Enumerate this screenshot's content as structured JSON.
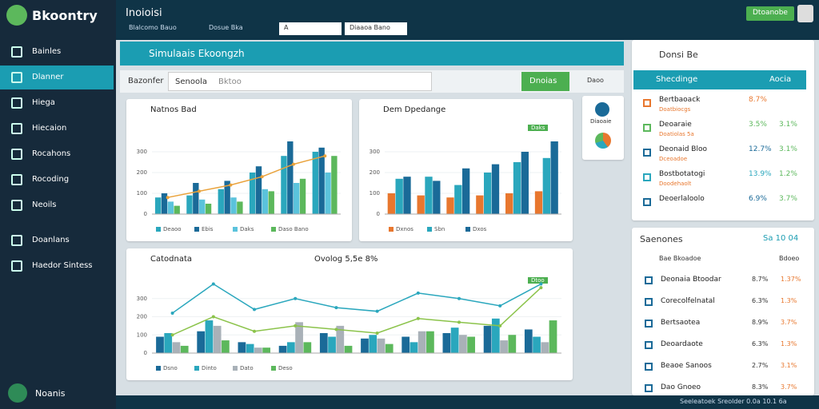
{
  "app": {
    "logo": "Bkoontry",
    "user": "Noanis",
    "status": "Seeleatoek Sreolder 0.0a 10.1 6a"
  },
  "sidebar": [
    "Bainles",
    "Dlanner",
    "Hiega",
    "Hiecaion",
    "Rocahons",
    "Rocoding",
    "Neoils",
    "Doanlans",
    "Haedor Sintess"
  ],
  "topbar": {
    "title": "Inoioisi",
    "tabs": [
      "Blalcomo Bauo",
      "Dosue Bka",
      "A",
      "Diaaoa Bano"
    ],
    "button": "Dtoanobe"
  },
  "main": {
    "title": "Simulaais Ekoongzh",
    "filter": "Bazonfer",
    "select": "Senoola",
    "search": "Bktoo",
    "button": "Dnoias",
    "option": "Daoo",
    "card": "Diaoaie"
  },
  "charts": [
    {
      "type": "bar",
      "title": "Natnos Bad",
      "ylim": [
        0,
        400
      ],
      "yticks": [
        0,
        100,
        200,
        300
      ],
      "series": [
        {
          "name": "Deaoo",
          "color": "#2aa7bd",
          "values": [
            80,
            90,
            120,
            200,
            280,
            300
          ]
        },
        {
          "name": "Ebis",
          "color": "#1a6a98",
          "values": [
            100,
            150,
            160,
            230,
            350,
            320
          ]
        },
        {
          "name": "Daks",
          "color": "#5bc3dc",
          "values": [
            60,
            70,
            80,
            120,
            150,
            200
          ]
        },
        {
          "name": "Daso Bano",
          "color": "#5cb85c",
          "values": [
            40,
            50,
            60,
            110,
            170,
            280
          ]
        }
      ],
      "lines": [
        {
          "color": "#e9a23b",
          "values": [
            80,
            110,
            140,
            180,
            240,
            280
          ]
        }
      ]
    },
    {
      "type": "bar",
      "title": "Dem Dpedange",
      "badge": "Daks",
      "ylim": [
        0,
        400
      ],
      "yticks": [
        0,
        100,
        200,
        300
      ],
      "series": [
        {
          "name": "Dxnos",
          "color": "#e8772e",
          "values": [
            100,
            90,
            80,
            90,
            100,
            110
          ]
        },
        {
          "name": "Sbn",
          "color": "#2aa7bd",
          "values": [
            170,
            180,
            140,
            200,
            250,
            270
          ]
        },
        {
          "name": "Dxos",
          "color": "#1a6a98",
          "values": [
            180,
            160,
            220,
            240,
            300,
            350
          ]
        }
      ],
      "lines": []
    },
    {
      "type": "bar",
      "title": "Catodnata",
      "subtitle": "Ovolog 5,5e 8%",
      "badge": "Dtoo",
      "ylim": [
        0,
        400
      ],
      "yticks": [
        0,
        100,
        200,
        300
      ],
      "series": [
        {
          "name": "Dsno",
          "color": "#1a6a98",
          "values": [
            90,
            120,
            60,
            40,
            110,
            80,
            90,
            110,
            150,
            130
          ]
        },
        {
          "name": "Dinto",
          "color": "#2aa7bd",
          "values": [
            110,
            180,
            50,
            60,
            90,
            100,
            60,
            140,
            190,
            90
          ]
        },
        {
          "name": "Dato",
          "color": "#a9b1b8",
          "values": [
            60,
            150,
            30,
            170,
            150,
            80,
            120,
            100,
            70,
            60
          ]
        },
        {
          "name": "Deso",
          "color": "#5cb85c",
          "values": [
            40,
            70,
            30,
            60,
            40,
            50,
            120,
            90,
            100,
            180
          ]
        }
      ],
      "lines": [
        {
          "color": "#2aa7bd",
          "values": [
            220,
            380,
            240,
            300,
            250,
            230,
            330,
            300,
            260,
            380
          ]
        },
        {
          "color": "#8bc34a",
          "values": [
            100,
            200,
            120,
            150,
            130,
            110,
            190,
            170,
            150,
            360
          ]
        }
      ]
    }
  ],
  "right": {
    "title": "Donsi Be",
    "tab": "Shecdinge",
    "tab_action": "Aocia",
    "rows": [
      {
        "label": "Bertbaoack",
        "sub": "Doatbiocgs",
        "a": "8.7%",
        "b": "",
        "color": "#e8772e"
      },
      {
        "label": "Deoaraie",
        "sub": "Doatiolas 5a",
        "a": "3.5%",
        "b": "3.1%",
        "color": "#5cb85c"
      },
      {
        "label": "Deonaid Bloo",
        "sub": "Dceoadoe",
        "a": "12.7%",
        "b": "3.1%",
        "color": "#1a6a98"
      },
      {
        "label": "Bostbotatogi",
        "sub": "Doodehaolt",
        "a": "13.9%",
        "b": "1.2%",
        "color": "#2aa7bd"
      },
      {
        "label": "Deoerlaloolo",
        "sub": "",
        "a": "6.9%",
        "b": "3.7%",
        "color": "#1a6a98"
      }
    ],
    "list_title": "Saenones",
    "list_action": "Sa 10 04",
    "columns": [
      "Bae Bkoadoe",
      "Bdoeo"
    ],
    "list": [
      {
        "label": "Deonaia Btoodar",
        "a": "8.7%",
        "b": "1.37%"
      },
      {
        "label": "Corecolfelnatal",
        "a": "6.3%",
        "b": "1.3%"
      },
      {
        "label": "Bertsaotea",
        "a": "8.9%",
        "b": "3.7%"
      },
      {
        "label": "Deoardaote",
        "a": "6.3%",
        "b": "1.3%"
      },
      {
        "label": "Beaoe Sanoos",
        "a": "2.7%",
        "b": "3.1%"
      },
      {
        "label": "Dao Gnoeo",
        "a": "8.3%",
        "b": "3.7%"
      }
    ]
  }
}
